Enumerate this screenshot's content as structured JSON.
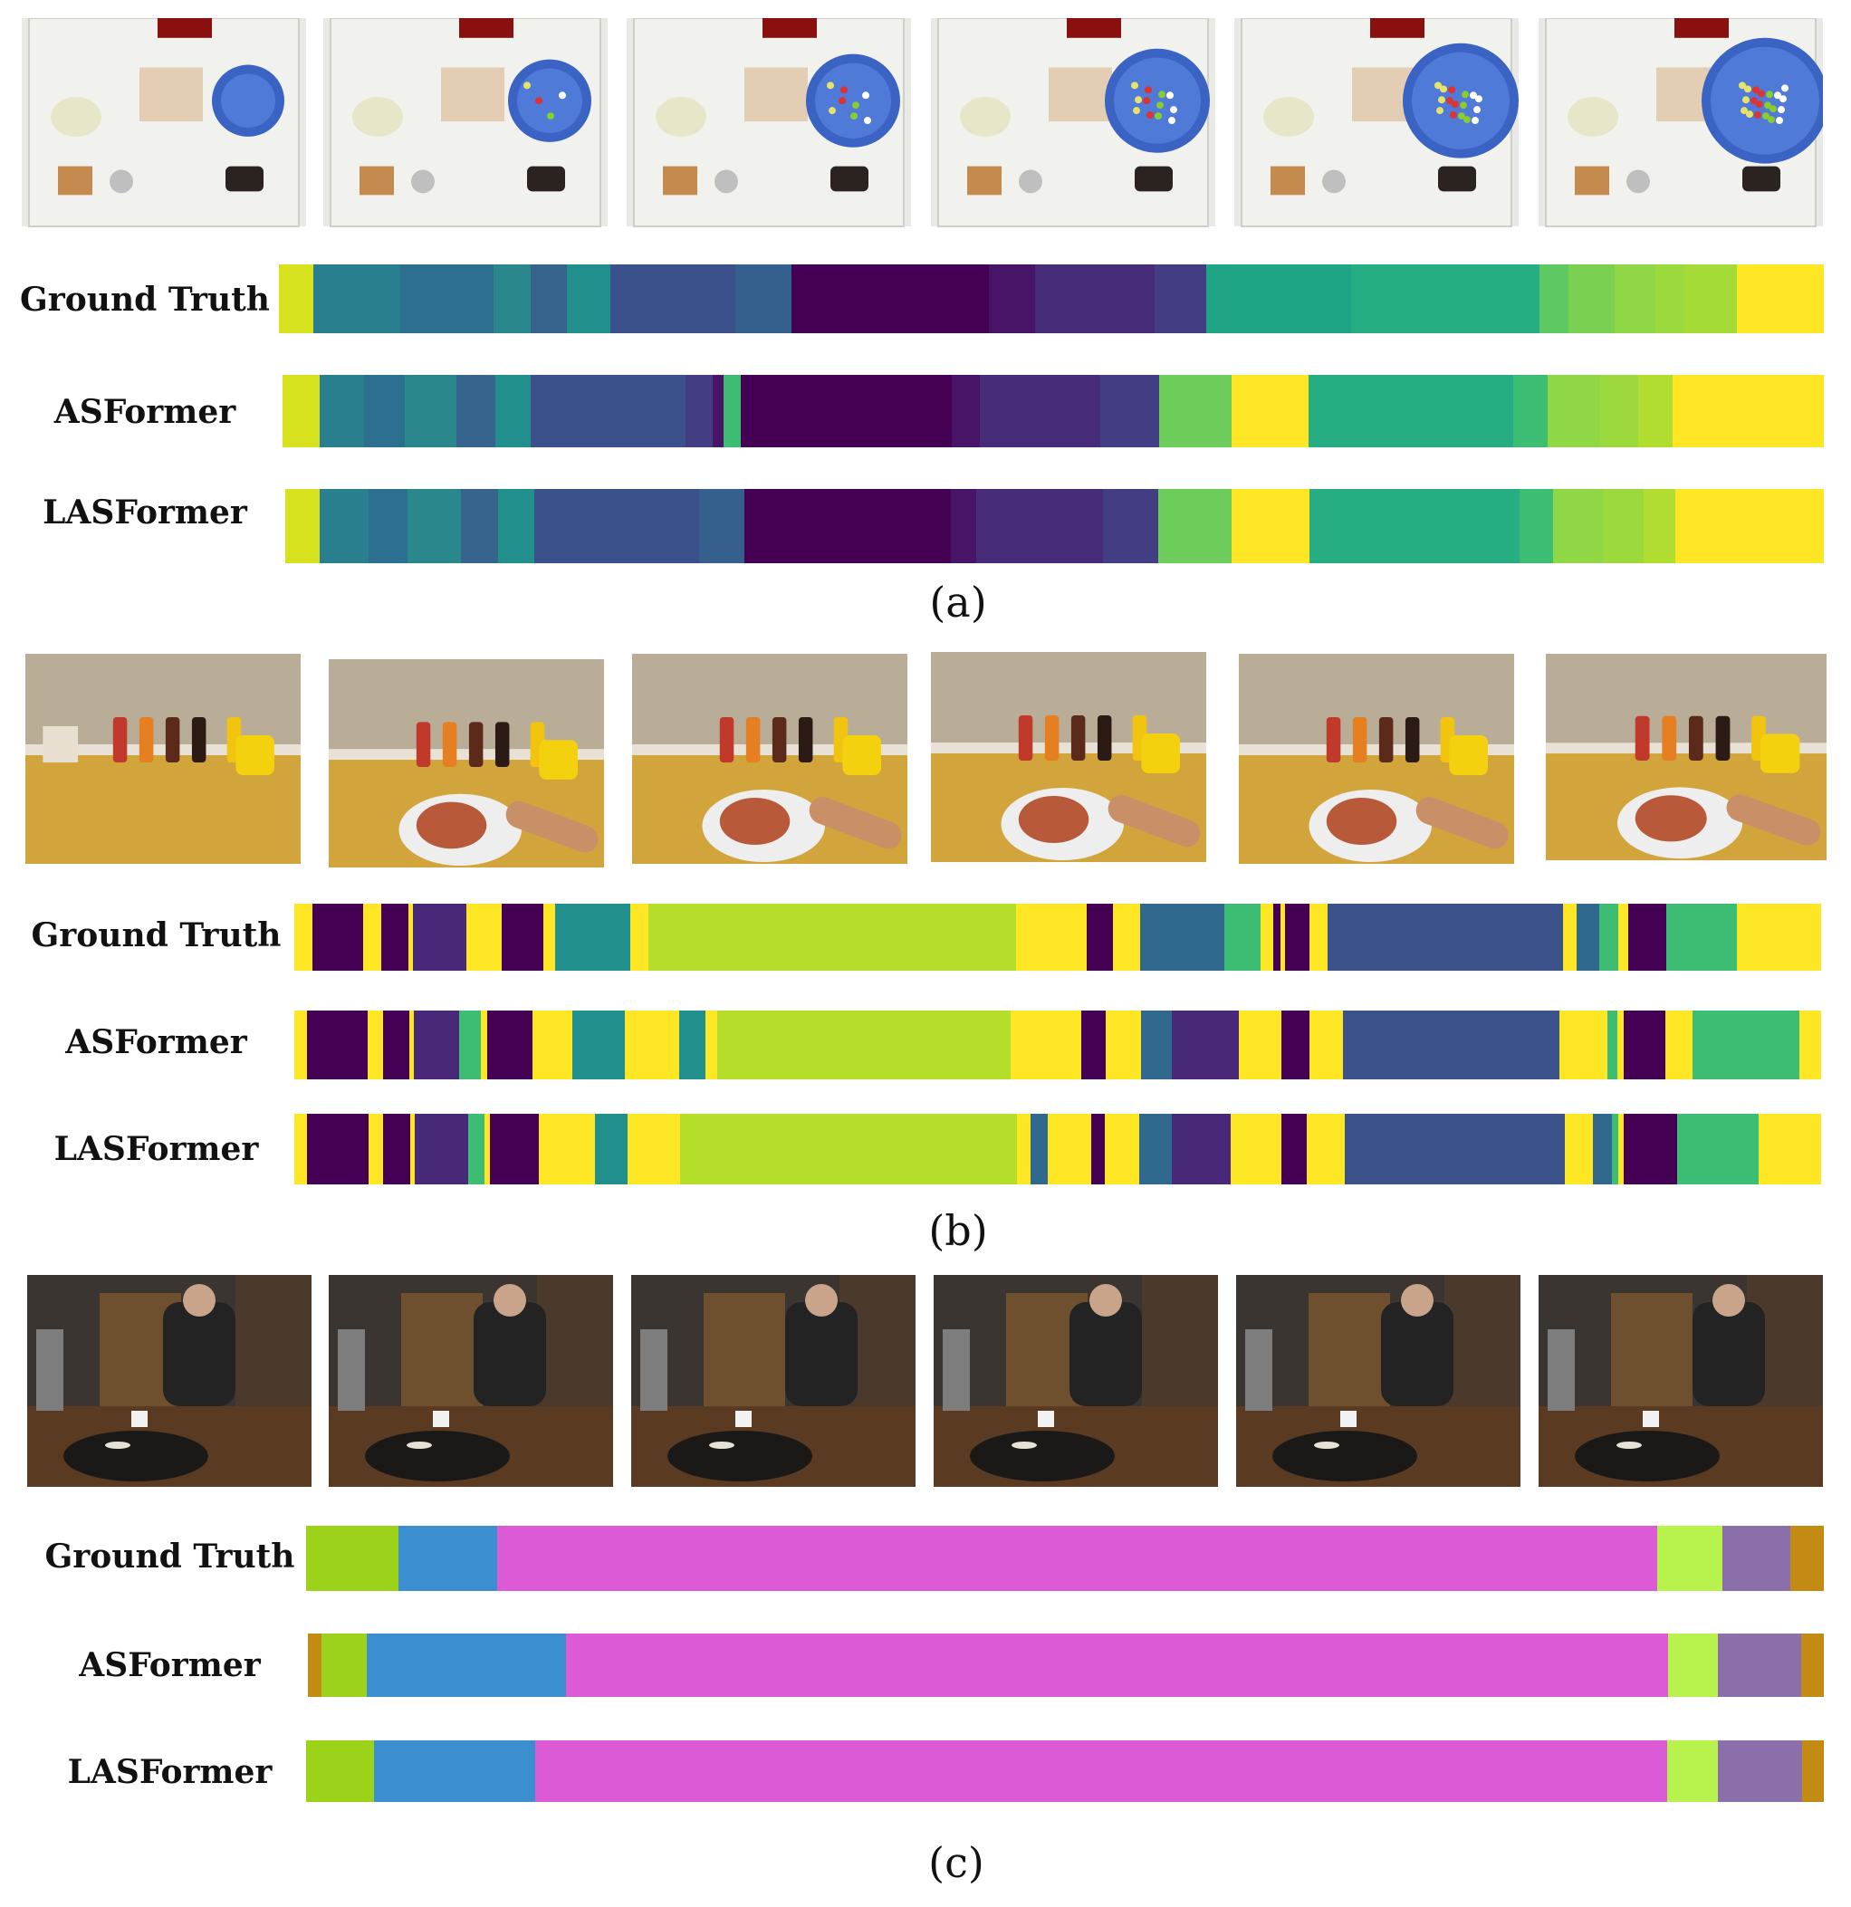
{
  "row_labels": {
    "gt": "Ground Truth",
    "asformer": "ASFormer",
    "lasformer": "LASFormer"
  },
  "panels": [
    {
      "id": "a",
      "caption": "(a)",
      "scene": "salad",
      "rows": {
        "gt": [
          {
            "w": 0.024,
            "c": "#d7e21f"
          },
          {
            "w": 0.06,
            "c": "#2a7f8e"
          },
          {
            "w": 0.064,
            "c": "#2d6f8e"
          },
          {
            "w": 0.026,
            "c": "#2a888d"
          },
          {
            "w": 0.025,
            "c": "#36648c"
          },
          {
            "w": 0.03,
            "c": "#21908d"
          },
          {
            "w": 0.086,
            "c": "#3b518b"
          },
          {
            "w": 0.039,
            "c": "#35608d"
          },
          {
            "w": 0.136,
            "c": "#440154"
          },
          {
            "w": 0.032,
            "c": "#481467"
          },
          {
            "w": 0.082,
            "c": "#472c7a"
          },
          {
            "w": 0.036,
            "c": "#433d84"
          },
          {
            "w": 0.1,
            "c": "#20a486"
          },
          {
            "w": 0.13,
            "c": "#26ad81"
          },
          {
            "w": 0.02,
            "c": "#5ec962"
          },
          {
            "w": 0.032,
            "c": "#7ad151"
          },
          {
            "w": 0.028,
            "c": "#8fd744"
          },
          {
            "w": 0.02,
            "c": "#9bd93c"
          },
          {
            "w": 0.036,
            "c": "#a5db36"
          },
          {
            "w": 0.06,
            "c": "#fde725"
          }
        ],
        "asformer": [
          {
            "w": 0.024,
            "c": "#d7e21f"
          },
          {
            "w": 0.029,
            "c": "#2a7f8e"
          },
          {
            "w": 0.026,
            "c": "#2d6f8e"
          },
          {
            "w": 0.034,
            "c": "#2a888d"
          },
          {
            "w": 0.025,
            "c": "#36648c"
          },
          {
            "w": 0.023,
            "c": "#21908d"
          },
          {
            "w": 0.1,
            "c": "#3b518b"
          },
          {
            "w": 0.018,
            "c": "#433d84"
          },
          {
            "w": 0.007,
            "c": "#481467"
          },
          {
            "w": 0.011,
            "c": "#3dbc74"
          },
          {
            "w": 0.137,
            "c": "#440154"
          },
          {
            "w": 0.018,
            "c": "#481467"
          },
          {
            "w": 0.078,
            "c": "#472c7a"
          },
          {
            "w": 0.038,
            "c": "#433d84"
          },
          {
            "w": 0.047,
            "c": "#6ccd5a"
          },
          {
            "w": 0.05,
            "c": "#fde725"
          },
          {
            "w": 0.133,
            "c": "#26ad81"
          },
          {
            "w": 0.022,
            "c": "#3dbc74"
          },
          {
            "w": 0.034,
            "c": "#8fd744"
          },
          {
            "w": 0.025,
            "c": "#9bd93c"
          },
          {
            "w": 0.022,
            "c": "#b0dd2f"
          },
          {
            "w": 0.098,
            "c": "#fde725"
          }
        ],
        "lasformer": [
          {
            "w": 0.022,
            "c": "#d7e21f"
          },
          {
            "w": 0.031,
            "c": "#2a7f8e"
          },
          {
            "w": 0.025,
            "c": "#2d6f8e"
          },
          {
            "w": 0.034,
            "c": "#2a888d"
          },
          {
            "w": 0.024,
            "c": "#36648c"
          },
          {
            "w": 0.023,
            "c": "#21908d"
          },
          {
            "w": 0.105,
            "c": "#3b518b"
          },
          {
            "w": 0.029,
            "c": "#35608d"
          },
          {
            "w": 0.132,
            "c": "#440154"
          },
          {
            "w": 0.016,
            "c": "#481467"
          },
          {
            "w": 0.081,
            "c": "#472c7a"
          },
          {
            "w": 0.035,
            "c": "#433d84"
          },
          {
            "w": 0.047,
            "c": "#6ccd5a"
          },
          {
            "w": 0.05,
            "c": "#fde725"
          },
          {
            "w": 0.134,
            "c": "#26ad81"
          },
          {
            "w": 0.021,
            "c": "#3dbc74"
          },
          {
            "w": 0.032,
            "c": "#8fd744"
          },
          {
            "w": 0.026,
            "c": "#9bd93c"
          },
          {
            "w": 0.02,
            "c": "#b0dd2f"
          },
          {
            "w": 0.095,
            "c": "#fde725"
          }
        ]
      }
    },
    {
      "id": "b",
      "caption": "(b)",
      "scene": "breakfast",
      "rows": {
        "gt": [
          {
            "w": 0.012,
            "c": "#fde725"
          },
          {
            "w": 0.033,
            "c": "#440154"
          },
          {
            "w": 0.012,
            "c": "#fde725"
          },
          {
            "w": 0.018,
            "c": "#440154"
          },
          {
            "w": 0.003,
            "c": "#fde725"
          },
          {
            "w": 0.035,
            "c": "#482878"
          },
          {
            "w": 0.023,
            "c": "#fde725"
          },
          {
            "w": 0.027,
            "c": "#440154"
          },
          {
            "w": 0.008,
            "c": "#fde725"
          },
          {
            "w": 0.049,
            "c": "#21908d"
          },
          {
            "w": 0.012,
            "c": "#fde725"
          },
          {
            "w": 0.241,
            "c": "#b5de2b"
          },
          {
            "w": 0.046,
            "c": "#fde725"
          },
          {
            "w": 0.017,
            "c": "#440154"
          },
          {
            "w": 0.018,
            "c": "#fde725"
          },
          {
            "w": 0.055,
            "c": "#31688e"
          },
          {
            "w": 0.024,
            "c": "#3dbc74"
          },
          {
            "w": 0.008,
            "c": "#fde725"
          },
          {
            "w": 0.005,
            "c": "#440154"
          },
          {
            "w": 0.003,
            "c": "#fde725"
          },
          {
            "w": 0.016,
            "c": "#440154"
          },
          {
            "w": 0.012,
            "c": "#fde725"
          },
          {
            "w": 0.154,
            "c": "#3b528b"
          },
          {
            "w": 0.009,
            "c": "#fde725"
          },
          {
            "w": 0.015,
            "c": "#31688e"
          },
          {
            "w": 0.012,
            "c": "#3dbc74"
          },
          {
            "w": 0.007,
            "c": "#fde725"
          },
          {
            "w": 0.025,
            "c": "#440154"
          },
          {
            "w": 0.046,
            "c": "#3dbc74"
          },
          {
            "w": 0.055,
            "c": "#fde725"
          }
        ],
        "asformer": [
          {
            "w": 0.008,
            "c": "#fde725"
          },
          {
            "w": 0.04,
            "c": "#440154"
          },
          {
            "w": 0.01,
            "c": "#fde725"
          },
          {
            "w": 0.017,
            "c": "#440154"
          },
          {
            "w": 0.003,
            "c": "#fde725"
          },
          {
            "w": 0.03,
            "c": "#482878"
          },
          {
            "w": 0.014,
            "c": "#3dbc74"
          },
          {
            "w": 0.004,
            "c": "#fde725"
          },
          {
            "w": 0.03,
            "c": "#440154"
          },
          {
            "w": 0.026,
            "c": "#fde725"
          },
          {
            "w": 0.034,
            "c": "#21908d"
          },
          {
            "w": 0.036,
            "c": "#fde725"
          },
          {
            "w": 0.017,
            "c": "#21908d"
          },
          {
            "w": 0.008,
            "c": "#fde725"
          },
          {
            "w": 0.192,
            "c": "#b5de2b"
          },
          {
            "w": 0.046,
            "c": "#fde725"
          },
          {
            "w": 0.016,
            "c": "#440154"
          },
          {
            "w": 0.023,
            "c": "#fde725"
          },
          {
            "w": 0.02,
            "c": "#31688e"
          },
          {
            "w": 0.044,
            "c": "#482878"
          },
          {
            "w": 0.028,
            "c": "#fde725"
          },
          {
            "w": 0.018,
            "c": "#440154"
          },
          {
            "w": 0.022,
            "c": "#fde725"
          },
          {
            "w": 0.142,
            "c": "#3b528b"
          },
          {
            "w": 0.031,
            "c": "#fde725"
          },
          {
            "w": 0.007,
            "c": "#3dbc74"
          },
          {
            "w": 0.004,
            "c": "#fde725"
          },
          {
            "w": 0.027,
            "c": "#440154"
          },
          {
            "w": 0.018,
            "c": "#fde725"
          },
          {
            "w": 0.07,
            "c": "#3dbc74"
          },
          {
            "w": 0.014,
            "c": "#fde725"
          }
        ],
        "lasformer": [
          {
            "w": 0.008,
            "c": "#fde725"
          },
          {
            "w": 0.04,
            "c": "#440154"
          },
          {
            "w": 0.009,
            "c": "#fde725"
          },
          {
            "w": 0.018,
            "c": "#440154"
          },
          {
            "w": 0.003,
            "c": "#fde725"
          },
          {
            "w": 0.034,
            "c": "#482878"
          },
          {
            "w": 0.011,
            "c": "#3dbc74"
          },
          {
            "w": 0.003,
            "c": "#fde725"
          },
          {
            "w": 0.032,
            "c": "#440154"
          },
          {
            "w": 0.036,
            "c": "#fde725"
          },
          {
            "w": 0.021,
            "c": "#21908d"
          },
          {
            "w": 0.034,
            "c": "#fde725"
          },
          {
            "w": 0.217,
            "c": "#b5de2b"
          },
          {
            "w": 0.009,
            "c": "#fde725"
          },
          {
            "w": 0.011,
            "c": "#31688e"
          },
          {
            "w": 0.028,
            "c": "#fde725"
          },
          {
            "w": 0.009,
            "c": "#440154"
          },
          {
            "w": 0.022,
            "c": "#fde725"
          },
          {
            "w": 0.021,
            "c": "#31688e"
          },
          {
            "w": 0.038,
            "c": "#482878"
          },
          {
            "w": 0.033,
            "c": "#fde725"
          },
          {
            "w": 0.016,
            "c": "#440154"
          },
          {
            "w": 0.025,
            "c": "#fde725"
          },
          {
            "w": 0.142,
            "c": "#3b528b"
          },
          {
            "w": 0.018,
            "c": "#fde725"
          },
          {
            "w": 0.012,
            "c": "#31688e"
          },
          {
            "w": 0.004,
            "c": "#3dbc74"
          },
          {
            "w": 0.004,
            "c": "#fde725"
          },
          {
            "w": 0.034,
            "c": "#440154"
          },
          {
            "w": 0.053,
            "c": "#3dbc74"
          },
          {
            "w": 0.04,
            "c": "#fde725"
          }
        ]
      }
    },
    {
      "id": "c",
      "caption": "(c)",
      "scene": "kitchen",
      "rows": {
        "gt": [
          {
            "w": 0.061,
            "c": "#9cd21a"
          },
          {
            "w": 0.065,
            "c": "#3b8fd0"
          },
          {
            "w": 0.764,
            "c": "#dc5ad6"
          },
          {
            "w": 0.043,
            "c": "#b8f24c"
          },
          {
            "w": 0.045,
            "c": "#8a6fab"
          },
          {
            "w": 0.022,
            "c": "#c38b13"
          }
        ],
        "asformer": [
          {
            "w": 0.009,
            "c": "#c38b13"
          },
          {
            "w": 0.03,
            "c": "#9cd21a"
          },
          {
            "w": 0.131,
            "c": "#3b8fd0"
          },
          {
            "w": 0.727,
            "c": "#dc5ad6"
          },
          {
            "w": 0.033,
            "c": "#b8f24c"
          },
          {
            "w": 0.055,
            "c": "#8a6fab"
          },
          {
            "w": 0.015,
            "c": "#c38b13"
          }
        ],
        "lasformer": [
          {
            "w": 0.045,
            "c": "#9cd21a"
          },
          {
            "w": 0.106,
            "c": "#3b8fd0"
          },
          {
            "w": 0.746,
            "c": "#dc5ad6"
          },
          {
            "w": 0.033,
            "c": "#b8f24c"
          },
          {
            "w": 0.056,
            "c": "#8a6fab"
          },
          {
            "w": 0.014,
            "c": "#c38b13"
          }
        ]
      }
    }
  ]
}
